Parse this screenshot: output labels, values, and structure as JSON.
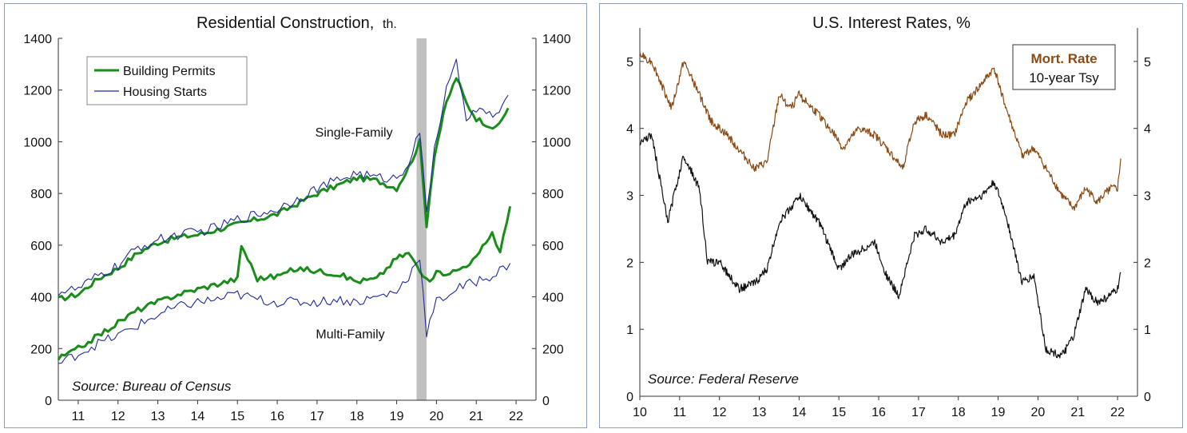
{
  "chart_data": [
    {
      "type": "line",
      "title": "Residential Construction,",
      "title_unit": "th.",
      "source": "Source: Bureau of Census",
      "ylim": [
        0,
        1400
      ],
      "xlim": [
        2010.5,
        2022.5
      ],
      "y_ticks": [
        0,
        200,
        400,
        600,
        800,
        1000,
        1200,
        1400
      ],
      "x_ticks": [
        {
          "label": "11",
          "x": 2011.0
        },
        {
          "label": "12",
          "x": 2012.0
        },
        {
          "label": "13",
          "x": 2013.0
        },
        {
          "label": "14",
          "x": 2014.0
        },
        {
          "label": "15",
          "x": 2015.0
        },
        {
          "label": "16",
          "x": 2016.0
        },
        {
          "label": "17",
          "x": 2017.0
        },
        {
          "label": "18",
          "x": 2018.0
        },
        {
          "label": "19",
          "x": 2019.0
        },
        {
          "label": "20",
          "x": 2020.0
        },
        {
          "label": "21",
          "x": 2021.0
        },
        {
          "label": "22",
          "x": 2022.0
        }
      ],
      "recession_band": [
        2019.5,
        2019.75
      ],
      "annotations": [
        {
          "text": "Single-Family",
          "x": 2018.9,
          "y": 1020
        },
        {
          "text": "Multi-Family",
          "x": 2018.7,
          "y": 240
        }
      ],
      "legend": {
        "position": "top-left",
        "entries": [
          {
            "name": "Building Permits",
            "color": "#1a8c1a"
          },
          {
            "name": "Housing Starts",
            "color": "#1f2a9c"
          }
        ]
      },
      "series": [
        {
          "name": "Building Permits",
          "group": "Single-Family",
          "color": "#1a8c1a",
          "points": [
            [
              2010.5,
              390
            ],
            [
              2011.0,
              410
            ],
            [
              2011.5,
              470
            ],
            [
              2012.0,
              510
            ],
            [
              2012.5,
              570
            ],
            [
              2013.0,
              610
            ],
            [
              2013.5,
              630
            ],
            [
              2014.0,
              640
            ],
            [
              2014.5,
              660
            ],
            [
              2015.0,
              680
            ],
            [
              2015.5,
              700
            ],
            [
              2016.0,
              720
            ],
            [
              2016.5,
              760
            ],
            [
              2017.0,
              800
            ],
            [
              2017.5,
              830
            ],
            [
              2018.0,
              860
            ],
            [
              2018.5,
              850
            ],
            [
              2019.0,
              820
            ],
            [
              2019.3,
              900
            ],
            [
              2019.58,
              1000
            ],
            [
              2019.75,
              680
            ],
            [
              2019.95,
              950
            ],
            [
              2020.25,
              1150
            ],
            [
              2020.5,
              1250
            ],
            [
              2020.75,
              1150
            ],
            [
              2021.0,
              1090
            ],
            [
              2021.5,
              1050
            ],
            [
              2021.8,
              1130
            ]
          ]
        },
        {
          "name": "Housing Starts",
          "group": "Single-Family",
          "color": "#1f2a9c",
          "points": [
            [
              2010.5,
              420
            ],
            [
              2011.0,
              430
            ],
            [
              2011.5,
              480
            ],
            [
              2012.0,
              520
            ],
            [
              2012.5,
              590
            ],
            [
              2013.0,
              620
            ],
            [
              2013.5,
              640
            ],
            [
              2014.0,
              650
            ],
            [
              2014.5,
              670
            ],
            [
              2015.0,
              700
            ],
            [
              2015.5,
              720
            ],
            [
              2016.0,
              740
            ],
            [
              2016.5,
              780
            ],
            [
              2017.0,
              820
            ],
            [
              2017.5,
              850
            ],
            [
              2018.0,
              880
            ],
            [
              2018.5,
              860
            ],
            [
              2019.0,
              860
            ],
            [
              2019.3,
              920
            ],
            [
              2019.58,
              1040
            ],
            [
              2019.75,
              720
            ],
            [
              2019.95,
              980
            ],
            [
              2020.25,
              1200
            ],
            [
              2020.5,
              1300
            ],
            [
              2020.75,
              1100
            ],
            [
              2021.0,
              1120
            ],
            [
              2021.5,
              1100
            ],
            [
              2021.8,
              1180
            ]
          ]
        },
        {
          "name": "Building Permits",
          "group": "Multi-Family",
          "color": "#1a8c1a",
          "points": [
            [
              2010.5,
              160
            ],
            [
              2011.0,
              200
            ],
            [
              2011.5,
              250
            ],
            [
              2012.0,
              300
            ],
            [
              2012.5,
              350
            ],
            [
              2013.0,
              380
            ],
            [
              2013.5,
              410
            ],
            [
              2014.0,
              430
            ],
            [
              2014.5,
              450
            ],
            [
              2015.0,
              470
            ],
            [
              2015.1,
              600
            ],
            [
              2015.5,
              470
            ],
            [
              2016.0,
              480
            ],
            [
              2016.5,
              510
            ],
            [
              2017.0,
              500
            ],
            [
              2017.5,
              490
            ],
            [
              2018.0,
              460
            ],
            [
              2018.5,
              470
            ],
            [
              2019.0,
              550
            ],
            [
              2019.3,
              570
            ],
            [
              2019.58,
              500
            ],
            [
              2019.75,
              460
            ],
            [
              2020.0,
              490
            ],
            [
              2020.5,
              500
            ],
            [
              2021.0,
              550
            ],
            [
              2021.4,
              650
            ],
            [
              2021.6,
              570
            ],
            [
              2021.85,
              750
            ]
          ]
        },
        {
          "name": "Housing Starts",
          "group": "Multi-Family",
          "color": "#1f2a9c",
          "points": [
            [
              2010.5,
              140
            ],
            [
              2011.0,
              180
            ],
            [
              2011.5,
              220
            ],
            [
              2012.0,
              250
            ],
            [
              2012.5,
              290
            ],
            [
              2013.0,
              330
            ],
            [
              2013.5,
              360
            ],
            [
              2014.0,
              380
            ],
            [
              2014.5,
              390
            ],
            [
              2015.0,
              410
            ],
            [
              2015.5,
              390
            ],
            [
              2016.0,
              380
            ],
            [
              2016.5,
              380
            ],
            [
              2017.0,
              380
            ],
            [
              2017.5,
              390
            ],
            [
              2018.0,
              380
            ],
            [
              2018.5,
              400
            ],
            [
              2019.0,
              420
            ],
            [
              2019.3,
              480
            ],
            [
              2019.58,
              560
            ],
            [
              2019.75,
              260
            ],
            [
              2020.0,
              380
            ],
            [
              2020.5,
              430
            ],
            [
              2021.0,
              460
            ],
            [
              2021.5,
              490
            ],
            [
              2021.85,
              530
            ]
          ]
        }
      ]
    },
    {
      "type": "line",
      "title": "U.S. Interest Rates, %",
      "source": "Source: Federal Reserve",
      "ylim": [
        0,
        5.5
      ],
      "xlim": [
        2010.0,
        2022.5
      ],
      "y_ticks": [
        0,
        1,
        2,
        3,
        4,
        5
      ],
      "x_ticks": [
        {
          "label": "10",
          "x": 2010.0
        },
        {
          "label": "11",
          "x": 2011.0
        },
        {
          "label": "12",
          "x": 2012.0
        },
        {
          "label": "13",
          "x": 2013.0
        },
        {
          "label": "14",
          "x": 2014.0
        },
        {
          "label": "15",
          "x": 2015.0
        },
        {
          "label": "16",
          "x": 2016.0
        },
        {
          "label": "17",
          "x": 2017.0
        },
        {
          "label": "18",
          "x": 2018.0
        },
        {
          "label": "19",
          "x": 2019.0
        },
        {
          "label": "20",
          "x": 2020.0
        },
        {
          "label": "21",
          "x": 2021.0
        },
        {
          "label": "22",
          "x": 2022.0
        }
      ],
      "legend": {
        "position": "top-right",
        "entries": [
          {
            "name": "Mort. Rate",
            "color": "#8b4a12"
          },
          {
            "name": "10-year Tsy",
            "color": "#111111"
          }
        ]
      },
      "series": [
        {
          "name": "Mort. Rate",
          "color": "#8b4a12",
          "points": [
            [
              2010.0,
              5.1
            ],
            [
              2010.3,
              5.0
            ],
            [
              2010.8,
              4.3
            ],
            [
              2011.1,
              5.0
            ],
            [
              2011.5,
              4.5
            ],
            [
              2011.8,
              4.1
            ],
            [
              2012.2,
              3.9
            ],
            [
              2012.6,
              3.6
            ],
            [
              2012.9,
              3.4
            ],
            [
              2013.2,
              3.5
            ],
            [
              2013.5,
              4.5
            ],
            [
              2013.8,
              4.3
            ],
            [
              2014.0,
              4.5
            ],
            [
              2014.5,
              4.2
            ],
            [
              2014.9,
              3.9
            ],
            [
              2015.1,
              3.7
            ],
            [
              2015.5,
              4.0
            ],
            [
              2015.9,
              3.9
            ],
            [
              2016.2,
              3.7
            ],
            [
              2016.6,
              3.4
            ],
            [
              2016.9,
              4.1
            ],
            [
              2017.2,
              4.2
            ],
            [
              2017.6,
              3.9
            ],
            [
              2017.9,
              3.9
            ],
            [
              2018.2,
              4.4
            ],
            [
              2018.5,
              4.6
            ],
            [
              2018.9,
              4.9
            ],
            [
              2019.2,
              4.3
            ],
            [
              2019.6,
              3.6
            ],
            [
              2019.9,
              3.7
            ],
            [
              2020.2,
              3.4
            ],
            [
              2020.6,
              3.0
            ],
            [
              2020.9,
              2.8
            ],
            [
              2021.2,
              3.1
            ],
            [
              2021.5,
              2.9
            ],
            [
              2021.8,
              3.1
            ],
            [
              2022.0,
              3.1
            ],
            [
              2022.08,
              3.55
            ]
          ]
        },
        {
          "name": "10-year Tsy",
          "color": "#111111",
          "points": [
            [
              2010.0,
              3.8
            ],
            [
              2010.3,
              3.9
            ],
            [
              2010.7,
              2.6
            ],
            [
              2011.1,
              3.6
            ],
            [
              2011.5,
              3.1
            ],
            [
              2011.7,
              2.0
            ],
            [
              2012.0,
              2.0
            ],
            [
              2012.5,
              1.6
            ],
            [
              2012.9,
              1.7
            ],
            [
              2013.2,
              1.9
            ],
            [
              2013.5,
              2.6
            ],
            [
              2013.9,
              2.9
            ],
            [
              2014.0,
              3.0
            ],
            [
              2014.5,
              2.6
            ],
            [
              2015.0,
              1.9
            ],
            [
              2015.3,
              2.1
            ],
            [
              2015.6,
              2.2
            ],
            [
              2015.9,
              2.3
            ],
            [
              2016.2,
              1.8
            ],
            [
              2016.5,
              1.5
            ],
            [
              2016.9,
              2.4
            ],
            [
              2017.2,
              2.5
            ],
            [
              2017.6,
              2.3
            ],
            [
              2017.9,
              2.4
            ],
            [
              2018.2,
              2.9
            ],
            [
              2018.6,
              3.0
            ],
            [
              2018.9,
              3.2
            ],
            [
              2019.2,
              2.7
            ],
            [
              2019.6,
              1.7
            ],
            [
              2019.9,
              1.8
            ],
            [
              2020.2,
              0.7
            ],
            [
              2020.6,
              0.6
            ],
            [
              2020.9,
              0.9
            ],
            [
              2021.2,
              1.6
            ],
            [
              2021.5,
              1.4
            ],
            [
              2021.8,
              1.5
            ],
            [
              2022.0,
              1.6
            ],
            [
              2022.08,
              1.85
            ]
          ]
        }
      ]
    }
  ]
}
